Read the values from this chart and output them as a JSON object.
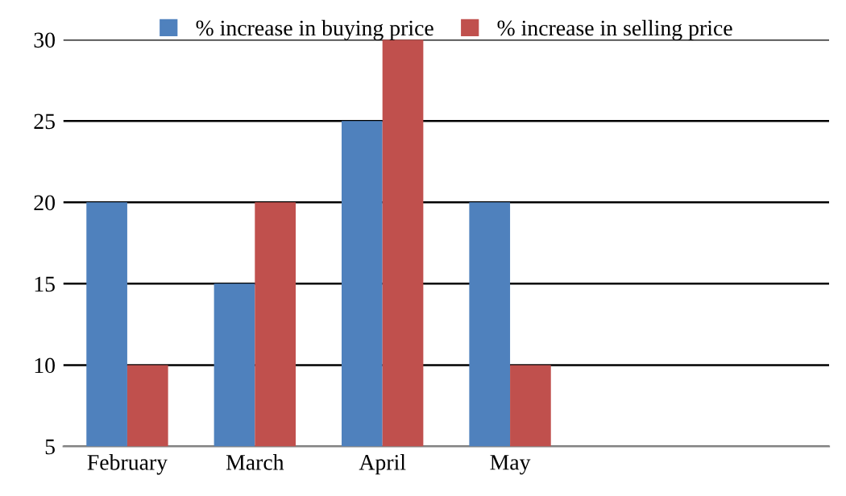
{
  "chart_data": {
    "type": "bar",
    "categories": [
      "February",
      "March",
      "April",
      "May",
      null,
      null
    ],
    "series": [
      {
        "name": "% increase in buying price",
        "color": "#4f81bd",
        "values": [
          20,
          15,
          25,
          20,
          null,
          null
        ]
      },
      {
        "name": "% increase in selling price",
        "color": "#c0504d",
        "values": [
          10,
          20,
          30,
          10,
          null,
          null
        ]
      }
    ],
    "ylim": [
      5,
      30
    ],
    "yticks": [
      5,
      10,
      15,
      20,
      25,
      30
    ],
    "grid": "y",
    "legend": "top"
  }
}
